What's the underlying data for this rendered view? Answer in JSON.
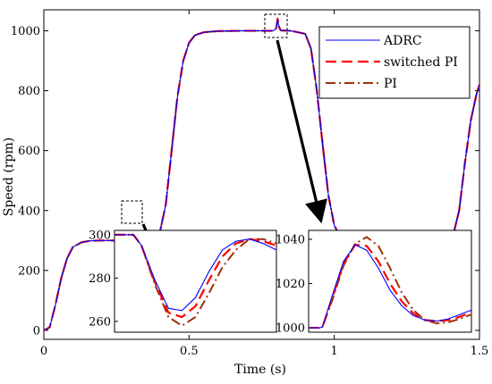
{
  "chart_data": {
    "type": "line",
    "xlabel": "Time (s)",
    "ylabel": "Speed (rpm)",
    "xlim": [
      0,
      1.5
    ],
    "ylim": [
      -30,
      1070
    ],
    "xticks": [
      0,
      0.5,
      1,
      1.5
    ],
    "xtick_labels": [
      "0",
      "0.5",
      "1",
      "1.5"
    ],
    "yticks": [
      0,
      200,
      400,
      600,
      800,
      1000
    ],
    "ytick_labels": [
      "0",
      "200",
      "400",
      "600",
      "800",
      "1000"
    ],
    "grid": false,
    "legend_position": "top-right",
    "series": [
      {
        "name": "ADRC",
        "color": "#0000ff",
        "style": "solid",
        "x": [
          0,
          0.02,
          0.04,
          0.06,
          0.08,
          0.1,
          0.13,
          0.16,
          0.2,
          0.25,
          0.29,
          0.295,
          0.3,
          0.305,
          0.31,
          0.32,
          0.35,
          0.4,
          0.42,
          0.44,
          0.46,
          0.48,
          0.5,
          0.52,
          0.55,
          0.6,
          0.7,
          0.79,
          0.8,
          0.805,
          0.81,
          0.815,
          0.82,
          0.85,
          0.9,
          0.92,
          0.94,
          0.96,
          0.98,
          1.0,
          1.02,
          1.05,
          1.1,
          1.2,
          1.3,
          1.39,
          1.41,
          1.43,
          1.45,
          1.47,
          1.49,
          1.5
        ],
        "y": [
          0,
          10,
          85,
          175,
          240,
          278,
          294,
          299,
          300,
          300,
          300,
          294,
          265,
          290,
          298,
          300,
          300,
          330,
          420,
          600,
          780,
          900,
          960,
          985,
          995,
          999,
          1000,
          1000,
          1008,
          1037,
          1012,
          1002,
          1001,
          1000,
          990,
          940,
          800,
          620,
          450,
          350,
          315,
          302,
          300,
          300,
          300,
          300,
          320,
          400,
          560,
          700,
          790,
          820
        ]
      },
      {
        "name": "switched PI",
        "color": "#ff0000",
        "style": "dashed",
        "x": [
          0,
          0.02,
          0.04,
          0.06,
          0.08,
          0.1,
          0.13,
          0.16,
          0.2,
          0.25,
          0.29,
          0.295,
          0.3,
          0.305,
          0.31,
          0.32,
          0.35,
          0.4,
          0.42,
          0.44,
          0.46,
          0.48,
          0.5,
          0.52,
          0.55,
          0.6,
          0.7,
          0.79,
          0.8,
          0.805,
          0.81,
          0.815,
          0.82,
          0.85,
          0.9,
          0.92,
          0.94,
          0.96,
          0.98,
          1.0,
          1.02,
          1.05,
          1.1,
          1.2,
          1.3,
          1.39,
          1.41,
          1.43,
          1.45,
          1.47,
          1.49,
          1.5
        ],
        "y": [
          0,
          10,
          85,
          175,
          240,
          278,
          294,
          299,
          300,
          300,
          300,
          294,
          263,
          290,
          298,
          300,
          300,
          330,
          420,
          600,
          780,
          900,
          960,
          985,
          995,
          999,
          1000,
          1000,
          1008,
          1038,
          1013,
          1002,
          1001,
          1000,
          990,
          940,
          800,
          620,
          450,
          350,
          315,
          302,
          300,
          300,
          300,
          300,
          320,
          400,
          560,
          700,
          790,
          820
        ]
      },
      {
        "name": "PI",
        "color": "#a0300a",
        "style": "dashdot",
        "x": [
          0,
          0.02,
          0.04,
          0.06,
          0.08,
          0.1,
          0.13,
          0.16,
          0.2,
          0.25,
          0.29,
          0.295,
          0.3,
          0.305,
          0.31,
          0.32,
          0.35,
          0.4,
          0.42,
          0.44,
          0.46,
          0.48,
          0.5,
          0.52,
          0.55,
          0.6,
          0.7,
          0.79,
          0.8,
          0.805,
          0.81,
          0.815,
          0.82,
          0.85,
          0.9,
          0.92,
          0.94,
          0.96,
          0.98,
          1.0,
          1.02,
          1.05,
          1.1,
          1.2,
          1.3,
          1.39,
          1.41,
          1.43,
          1.45,
          1.47,
          1.49,
          1.5
        ],
        "y": [
          0,
          10,
          85,
          175,
          240,
          278,
          294,
          299,
          300,
          300,
          300,
          294,
          260,
          288,
          298,
          300,
          300,
          330,
          420,
          600,
          780,
          900,
          960,
          985,
          995,
          999,
          1000,
          1000,
          1008,
          1041,
          1014,
          1003,
          1001,
          1000,
          990,
          940,
          800,
          620,
          450,
          350,
          315,
          302,
          300,
          300,
          300,
          300,
          320,
          400,
          560,
          700,
          790,
          820
        ]
      }
    ],
    "insets": [
      {
        "xlim": [
          0.295,
          0.325
        ],
        "ylim": [
          255,
          302
        ],
        "yticks": [
          260,
          280,
          300
        ],
        "ytick_labels": [
          "260",
          "280",
          "300"
        ],
        "series": [
          {
            "name": "ADRC",
            "x": [
              0.295,
              0.2975,
              0.2985,
              0.3,
              0.3025,
              0.305,
              0.3075,
              0.31,
              0.3125,
              0.315,
              0.3175,
              0.32,
              0.3225,
              0.325
            ],
            "y": [
              300,
              300,
              300,
              295,
              279,
              266,
              265,
              271,
              283,
              293,
              297,
              298,
              296,
              293
            ]
          },
          {
            "name": "switched PI",
            "x": [
              0.295,
              0.2975,
              0.2985,
              0.3,
              0.3025,
              0.305,
              0.3075,
              0.31,
              0.3125,
              0.315,
              0.3175,
              0.32,
              0.3225,
              0.325
            ],
            "y": [
              300,
              300,
              300,
              295,
              278,
              264,
              262,
              267,
              279,
              290,
              296,
              298,
              297,
              295
            ]
          },
          {
            "name": "PI",
            "x": [
              0.295,
              0.2975,
              0.2985,
              0.3,
              0.3025,
              0.305,
              0.3075,
              0.31,
              0.3125,
              0.315,
              0.3175,
              0.32,
              0.3225,
              0.325
            ],
            "y": [
              300,
              300,
              300,
              295,
              277,
              262,
              258,
              262,
              273,
              285,
              293,
              298,
              298,
              296
            ]
          }
        ]
      },
      {
        "xlim": [
          0.795,
          0.83
        ],
        "ylim": [
          998,
          1044
        ],
        "yticks": [
          1000,
          1020,
          1040
        ],
        "ytick_labels": [
          "1000",
          "1020",
          "1040"
        ],
        "series": [
          {
            "name": "ADRC",
            "x": [
              0.795,
              0.7975,
              0.798,
              0.8,
              0.8025,
              0.805,
              0.8075,
              0.81,
              0.8125,
              0.815,
              0.8175,
              0.82,
              0.8225,
              0.825,
              0.8275,
              0.83
            ],
            "y": [
              1000,
              1000,
              1000.5,
              1014,
              1030,
              1037.5,
              1035,
              1027,
              1017,
              1010,
              1005.5,
              1003.5,
              1003,
              1004,
              1006,
              1008
            ]
          },
          {
            "name": "switched PI",
            "x": [
              0.795,
              0.7975,
              0.798,
              0.8,
              0.8025,
              0.805,
              0.8075,
              0.81,
              0.8125,
              0.815,
              0.8175,
              0.82,
              0.8225,
              0.825,
              0.8275,
              0.83
            ],
            "y": [
              1000,
              1000,
              1000.5,
              1013,
              1029,
              1037.5,
              1037,
              1030,
              1020,
              1012,
              1006.5,
              1003.5,
              1003,
              1003.5,
              1005,
              1007
            ]
          },
          {
            "name": "PI",
            "x": [
              0.795,
              0.7975,
              0.798,
              0.8,
              0.8025,
              0.805,
              0.8075,
              0.81,
              0.8125,
              0.815,
              0.8175,
              0.82,
              0.8225,
              0.825,
              0.8275,
              0.83
            ],
            "y": [
              1000,
              1000,
              1000.5,
              1012,
              1028,
              1038,
              1041,
              1037,
              1027,
              1016,
              1008,
              1003.5,
              1002,
              1002.5,
              1004,
              1006
            ]
          }
        ]
      }
    ]
  }
}
